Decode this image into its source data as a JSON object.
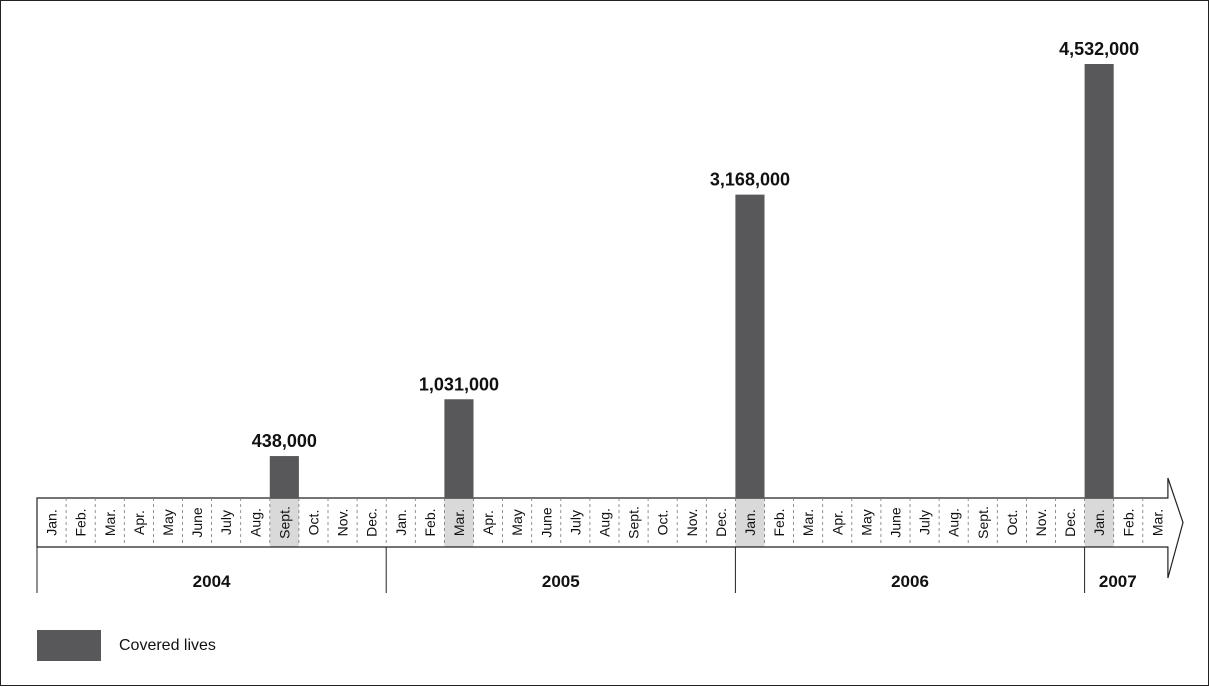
{
  "chart_data": {
    "type": "bar",
    "categories": [
      "Jan.",
      "Feb.",
      "Mar.",
      "Apr.",
      "May",
      "June",
      "July",
      "Aug.",
      "Sept.",
      "Oct.",
      "Nov.",
      "Dec.",
      "Jan.",
      "Feb.",
      "Mar.",
      "Apr.",
      "May",
      "June",
      "July",
      "Aug.",
      "Sept.",
      "Oct.",
      "Nov.",
      "Dec.",
      "Jan.",
      "Feb.",
      "Mar.",
      "Apr.",
      "May",
      "June",
      "July",
      "Aug.",
      "Sept.",
      "Oct.",
      "Nov.",
      "Dec.",
      "Jan.",
      "Feb.",
      "Mar."
    ],
    "years": [
      {
        "label": "2004",
        "months": 12
      },
      {
        "label": "2005",
        "months": 12
      },
      {
        "label": "2006",
        "months": 12
      },
      {
        "label": "2007",
        "months": 3
      }
    ],
    "bars": [
      {
        "month_index": 8,
        "value": 438000,
        "label": "438,000"
      },
      {
        "month_index": 14,
        "value": 1031000,
        "label": "1,031,000"
      },
      {
        "month_index": 24,
        "value": 3168000,
        "label": "3,168,000"
      },
      {
        "month_index": 36,
        "value": 4532000,
        "label": "4,532,000"
      }
    ],
    "series": [
      {
        "name": "Covered lives"
      }
    ],
    "ylim": [
      0,
      4532000
    ],
    "grid": false,
    "legend_position": "bottom-left",
    "colors": {
      "bar": "#58585a",
      "highlight": "#d9d9d9",
      "axis": "#222222"
    }
  },
  "legend": {
    "label": "Covered lives"
  }
}
